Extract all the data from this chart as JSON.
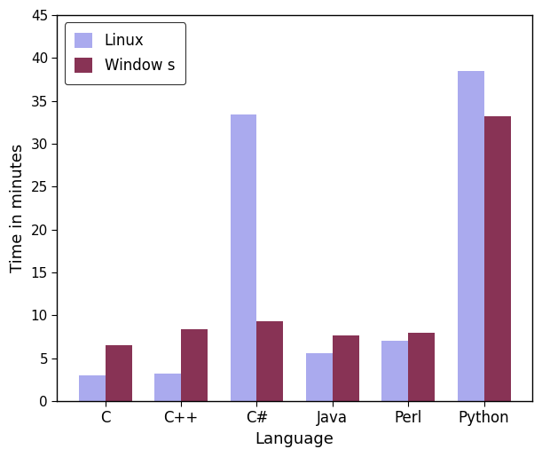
{
  "categories": [
    "C",
    "C++",
    "C#",
    "Java",
    "Perl",
    "Python"
  ],
  "linux_values": [
    3.0,
    3.2,
    33.4,
    5.6,
    7.0,
    38.5
  ],
  "windows_values": [
    6.5,
    8.4,
    9.3,
    7.7,
    8.0,
    33.2
  ],
  "linux_color": "#aaaaee",
  "windows_color": "#883355",
  "xlabel": "Language",
  "ylabel": "Time in minutes",
  "ylim": [
    0,
    45
  ],
  "yticks": [
    0,
    5,
    10,
    15,
    20,
    25,
    30,
    35,
    40,
    45
  ],
  "legend_labels": [
    "Linux",
    "Window s"
  ],
  "bar_width": 0.35,
  "background_color": "#ffffff"
}
